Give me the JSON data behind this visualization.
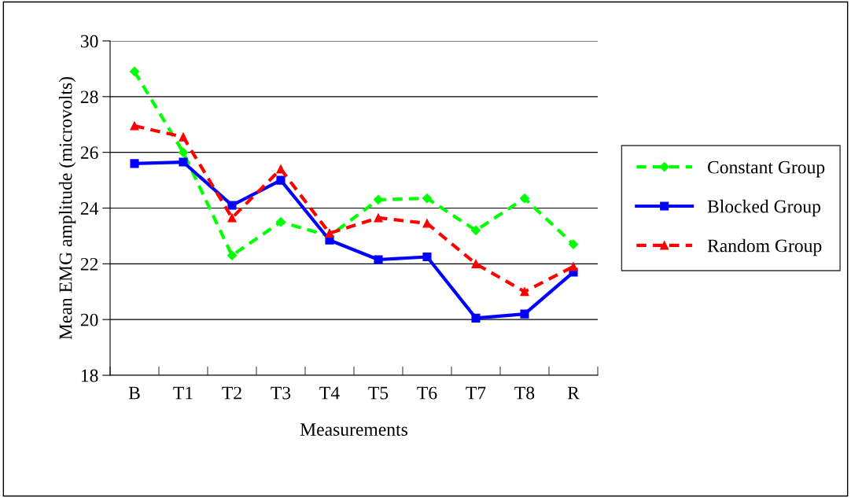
{
  "chart_data": {
    "type": "line",
    "xlabel": "Measurements",
    "ylabel": "Mean EMG amplitude (microvolts)",
    "categories": [
      "B",
      "T1",
      "T2",
      "T3",
      "T4",
      "T5",
      "T6",
      "T7",
      "T8",
      "R"
    ],
    "series": [
      {
        "name": "Constant Group",
        "color": "#00ff00",
        "marker": "diamond",
        "line_style": "dashed",
        "values": [
          28.9,
          26.0,
          22.3,
          23.5,
          23.0,
          24.3,
          24.35,
          23.2,
          24.35,
          22.7
        ]
      },
      {
        "name": "Blocked Group",
        "color": "#0000ff",
        "marker": "square",
        "line_style": "solid",
        "values": [
          25.6,
          25.65,
          24.1,
          25.0,
          22.85,
          22.15,
          22.25,
          20.05,
          20.2,
          21.7
        ]
      },
      {
        "name": "Random Group",
        "color": "#ff0000",
        "marker": "triangle",
        "line_style": "dashed",
        "values": [
          26.95,
          26.55,
          23.65,
          25.4,
          23.1,
          23.65,
          23.45,
          22.0,
          21.0,
          21.9
        ]
      }
    ],
    "ylim": [
      18,
      30
    ],
    "yticks": [
      18,
      20,
      22,
      24,
      26,
      28,
      30
    ],
    "grid": "y",
    "legend": "right"
  }
}
